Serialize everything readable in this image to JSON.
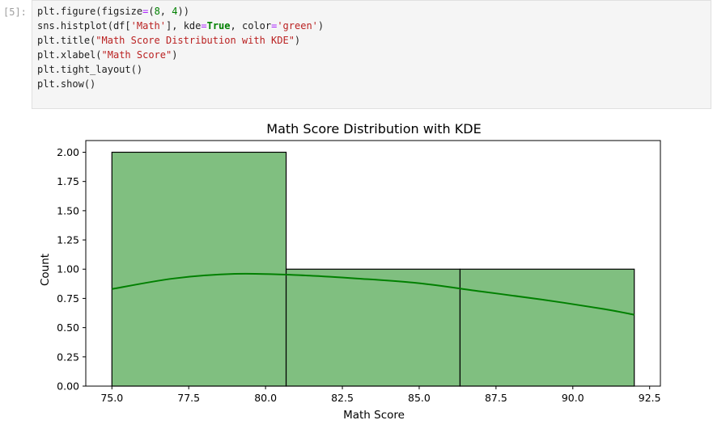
{
  "cell": {
    "prompt": "[5]:",
    "code_lines": [
      [
        {
          "t": "plt",
          "k": "name"
        },
        {
          "t": ".",
          "k": "punc"
        },
        {
          "t": "figure",
          "k": "name"
        },
        {
          "t": "(",
          "k": "punc"
        },
        {
          "t": "figsize",
          "k": "name"
        },
        {
          "t": "=",
          "k": "op"
        },
        {
          "t": "(",
          "k": "punc"
        },
        {
          "t": "8",
          "k": "num"
        },
        {
          "t": ", ",
          "k": "punc"
        },
        {
          "t": "4",
          "k": "num"
        },
        {
          "t": "))",
          "k": "punc"
        }
      ],
      [
        {
          "t": "sns",
          "k": "name"
        },
        {
          "t": ".",
          "k": "punc"
        },
        {
          "t": "histplot",
          "k": "name"
        },
        {
          "t": "(",
          "k": "punc"
        },
        {
          "t": "df",
          "k": "name"
        },
        {
          "t": "[",
          "k": "punc"
        },
        {
          "t": "'Math'",
          "k": "str"
        },
        {
          "t": "], ",
          "k": "punc"
        },
        {
          "t": "kde",
          "k": "name"
        },
        {
          "t": "=",
          "k": "op"
        },
        {
          "t": "True",
          "k": "kw"
        },
        {
          "t": ", ",
          "k": "punc"
        },
        {
          "t": "color",
          "k": "name"
        },
        {
          "t": "=",
          "k": "op"
        },
        {
          "t": "'green'",
          "k": "str"
        },
        {
          "t": ")",
          "k": "punc"
        }
      ],
      [
        {
          "t": "plt",
          "k": "name"
        },
        {
          "t": ".",
          "k": "punc"
        },
        {
          "t": "title",
          "k": "name"
        },
        {
          "t": "(",
          "k": "punc"
        },
        {
          "t": "\"Math Score Distribution with KDE\"",
          "k": "str"
        },
        {
          "t": ")",
          "k": "punc"
        }
      ],
      [
        {
          "t": "plt",
          "k": "name"
        },
        {
          "t": ".",
          "k": "punc"
        },
        {
          "t": "xlabel",
          "k": "name"
        },
        {
          "t": "(",
          "k": "punc"
        },
        {
          "t": "\"Math Score\"",
          "k": "str"
        },
        {
          "t": ")",
          "k": "punc"
        }
      ],
      [
        {
          "t": "plt",
          "k": "name"
        },
        {
          "t": ".",
          "k": "punc"
        },
        {
          "t": "tight_layout",
          "k": "name"
        },
        {
          "t": "()",
          "k": "punc"
        }
      ],
      [
        {
          "t": "plt",
          "k": "name"
        },
        {
          "t": ".",
          "k": "punc"
        },
        {
          "t": "show",
          "k": "name"
        },
        {
          "t": "()",
          "k": "punc"
        }
      ]
    ]
  },
  "chart_data": {
    "type": "bar",
    "title": "Math Score Distribution with KDE",
    "xlabel": "Math Score",
    "ylabel": "Count",
    "xlim": [
      74.15,
      92.85
    ],
    "ylim": [
      0,
      2.1
    ],
    "xticks": [
      "75.0",
      "77.5",
      "80.0",
      "82.5",
      "85.0",
      "87.5",
      "90.0",
      "92.5"
    ],
    "xtick_values": [
      75.0,
      77.5,
      80.0,
      82.5,
      85.0,
      87.5,
      90.0,
      92.5
    ],
    "yticks": [
      "0.00",
      "0.25",
      "0.50",
      "0.75",
      "1.00",
      "1.25",
      "1.50",
      "1.75",
      "2.00"
    ],
    "ytick_values": [
      0,
      0.25,
      0.5,
      0.75,
      1.0,
      1.25,
      1.5,
      1.75,
      2.0
    ],
    "bins": [
      {
        "start": 75.0,
        "end": 80.67,
        "count": 2
      },
      {
        "start": 80.67,
        "end": 86.33,
        "count": 1
      },
      {
        "start": 86.33,
        "end": 92.0,
        "count": 1
      }
    ],
    "kde": {
      "x": [
        75.0,
        77.0,
        79.0,
        81.0,
        83.0,
        85.0,
        87.0,
        89.0,
        91.0,
        92.0
      ],
      "y": [
        0.83,
        0.92,
        0.96,
        0.95,
        0.92,
        0.88,
        0.81,
        0.74,
        0.66,
        0.61
      ]
    },
    "grid": false,
    "colors": {
      "bar_fill": "#80bf80",
      "bar_edge": "#000000",
      "kde_line": "#008000"
    }
  }
}
